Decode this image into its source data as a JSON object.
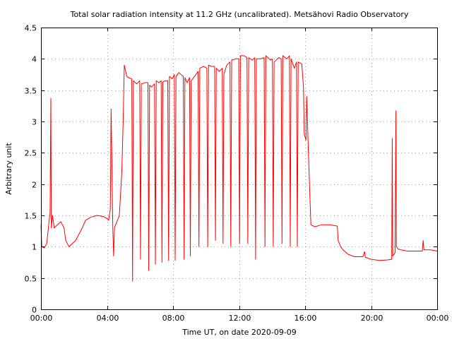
{
  "chart_data": {
    "type": "line",
    "title": "Total solar radiation intensity at 11.2 GHz (uncalibrated). Metsähovi Radio Observatory",
    "xlabel": "Time UT, on date 2020-09-09",
    "ylabel": "Arbitrary unit",
    "xlim": [
      0,
      24
    ],
    "ylim": [
      0,
      4.5
    ],
    "x_ticks": [
      {
        "value": 0,
        "label": "00:00"
      },
      {
        "value": 4,
        "label": "04:00"
      },
      {
        "value": 8,
        "label": "08:00"
      },
      {
        "value": 12,
        "label": "12:00"
      },
      {
        "value": 16,
        "label": "16:00"
      },
      {
        "value": 20,
        "label": "20:00"
      },
      {
        "value": 24,
        "label": "00:00"
      }
    ],
    "y_ticks": [
      {
        "value": 0,
        "label": "0"
      },
      {
        "value": 0.5,
        "label": "0.5"
      },
      {
        "value": 1,
        "label": "1"
      },
      {
        "value": 1.5,
        "label": "1.5"
      },
      {
        "value": 2,
        "label": "2"
      },
      {
        "value": 2.5,
        "label": "2.5"
      },
      {
        "value": 3,
        "label": "3"
      },
      {
        "value": 3.5,
        "label": "3.5"
      },
      {
        "value": 4,
        "label": "4"
      },
      {
        "value": 4.5,
        "label": "4.5"
      }
    ],
    "grid": true,
    "line_color": "#ff0000",
    "series": [
      {
        "points": [
          [
            0.0,
            1.35
          ],
          [
            0.05,
            1.0
          ],
          [
            0.2,
            0.98
          ],
          [
            0.35,
            1.05
          ],
          [
            0.45,
            1.3
          ],
          [
            0.55,
            1.55
          ],
          [
            0.6,
            3.37
          ],
          [
            0.63,
            1.3
          ],
          [
            0.7,
            1.5
          ],
          [
            0.8,
            1.3
          ],
          [
            1.0,
            1.35
          ],
          [
            1.2,
            1.4
          ],
          [
            1.4,
            1.3
          ],
          [
            1.5,
            1.1
          ],
          [
            1.7,
            1.0
          ],
          [
            1.9,
            1.05
          ],
          [
            2.1,
            1.1
          ],
          [
            2.3,
            1.2
          ],
          [
            2.5,
            1.3
          ],
          [
            2.7,
            1.42
          ],
          [
            3.0,
            1.47
          ],
          [
            3.4,
            1.5
          ],
          [
            3.8,
            1.48
          ],
          [
            4.0,
            1.45
          ],
          [
            4.1,
            1.42
          ],
          [
            4.2,
            1.6
          ],
          [
            4.25,
            3.2
          ],
          [
            4.3,
            2.3
          ],
          [
            4.35,
            1.3
          ],
          [
            4.4,
            0.85
          ],
          [
            4.45,
            1.3
          ],
          [
            4.6,
            1.4
          ],
          [
            4.75,
            1.5
          ],
          [
            4.9,
            2.2
          ],
          [
            4.98,
            3.0
          ],
          [
            5.05,
            3.9
          ],
          [
            5.2,
            3.72
          ],
          [
            5.3,
            3.7
          ],
          [
            5.5,
            3.68
          ],
          [
            5.55,
            0.45
          ],
          [
            5.6,
            3.65
          ],
          [
            5.8,
            3.6
          ],
          [
            5.98,
            3.65
          ],
          [
            6.03,
            0.8
          ],
          [
            6.08,
            3.6
          ],
          [
            6.3,
            3.62
          ],
          [
            6.48,
            3.62
          ],
          [
            6.53,
            0.62
          ],
          [
            6.58,
            3.58
          ],
          [
            6.7,
            3.55
          ],
          [
            6.88,
            3.6
          ],
          [
            6.93,
            0.72
          ],
          [
            6.98,
            3.65
          ],
          [
            7.15,
            3.62
          ],
          [
            7.28,
            3.65
          ],
          [
            7.33,
            0.75
          ],
          [
            7.38,
            3.63
          ],
          [
            7.52,
            3.65
          ],
          [
            7.68,
            3.65
          ],
          [
            7.73,
            0.78
          ],
          [
            7.78,
            3.72
          ],
          [
            7.95,
            3.68
          ],
          [
            8.08,
            3.75
          ],
          [
            8.13,
            0.78
          ],
          [
            8.18,
            3.72
          ],
          [
            8.35,
            3.78
          ],
          [
            8.62,
            3.72
          ],
          [
            8.67,
            0.8
          ],
          [
            8.72,
            3.7
          ],
          [
            8.85,
            3.62
          ],
          [
            9.0,
            3.7
          ],
          [
            9.05,
            0.85
          ],
          [
            9.1,
            3.65
          ],
          [
            9.3,
            3.72
          ],
          [
            9.52,
            3.8
          ],
          [
            9.57,
            1.0
          ],
          [
            9.62,
            3.85
          ],
          [
            9.85,
            3.88
          ],
          [
            10.05,
            3.85
          ],
          [
            10.1,
            1.0
          ],
          [
            10.15,
            3.9
          ],
          [
            10.3,
            3.88
          ],
          [
            10.52,
            3.88
          ],
          [
            10.57,
            1.1
          ],
          [
            10.62,
            3.85
          ],
          [
            10.8,
            3.8
          ],
          [
            10.98,
            3.85
          ],
          [
            11.03,
            1.05
          ],
          [
            11.08,
            3.75
          ],
          [
            11.25,
            3.9
          ],
          [
            11.45,
            3.95
          ],
          [
            11.5,
            1.0
          ],
          [
            11.55,
            3.98
          ],
          [
            11.8,
            4.0
          ],
          [
            11.98,
            4.0
          ],
          [
            12.03,
            1.05
          ],
          [
            12.08,
            4.05
          ],
          [
            12.3,
            4.05
          ],
          [
            12.48,
            4.02
          ],
          [
            12.53,
            1.05
          ],
          [
            12.58,
            4.02
          ],
          [
            12.8,
            3.98
          ],
          [
            12.95,
            4.02
          ],
          [
            13.0,
            0.8
          ],
          [
            13.05,
            4.0
          ],
          [
            13.3,
            4.0
          ],
          [
            13.52,
            4.02
          ],
          [
            13.57,
            1.0
          ],
          [
            13.62,
            4.05
          ],
          [
            13.9,
            3.98
          ],
          [
            14.02,
            4.0
          ],
          [
            14.07,
            1.0
          ],
          [
            14.12,
            3.95
          ],
          [
            14.4,
            4.02
          ],
          [
            14.55,
            4.0
          ],
          [
            14.6,
            1.05
          ],
          [
            14.65,
            4.05
          ],
          [
            14.9,
            4.0
          ],
          [
            15.05,
            4.05
          ],
          [
            15.1,
            1.0
          ],
          [
            15.15,
            4.0
          ],
          [
            15.35,
            3.85
          ],
          [
            15.48,
            3.95
          ],
          [
            15.53,
            1.0
          ],
          [
            15.58,
            3.95
          ],
          [
            15.8,
            3.92
          ],
          [
            15.9,
            3.55
          ],
          [
            15.95,
            2.8
          ],
          [
            16.05,
            2.7
          ],
          [
            16.1,
            3.4
          ],
          [
            16.2,
            2.5
          ],
          [
            16.35,
            1.35
          ],
          [
            16.6,
            1.32
          ],
          [
            17.0,
            1.35
          ],
          [
            17.5,
            1.35
          ],
          [
            17.95,
            1.33
          ],
          [
            18.0,
            1.1
          ],
          [
            18.15,
            1.0
          ],
          [
            18.3,
            0.95
          ],
          [
            18.6,
            0.88
          ],
          [
            19.0,
            0.84
          ],
          [
            19.5,
            0.84
          ],
          [
            19.6,
            0.92
          ],
          [
            19.65,
            0.83
          ],
          [
            20.0,
            0.8
          ],
          [
            20.5,
            0.78
          ],
          [
            21.0,
            0.79
          ],
          [
            21.25,
            0.8
          ],
          [
            21.28,
            2.73
          ],
          [
            21.31,
            0.85
          ],
          [
            21.45,
            0.9
          ],
          [
            21.5,
            3.17
          ],
          [
            21.53,
            1.0
          ],
          [
            21.6,
            0.97
          ],
          [
            21.8,
            0.95
          ],
          [
            22.2,
            0.93
          ],
          [
            22.8,
            0.93
          ],
          [
            23.1,
            0.93
          ],
          [
            23.15,
            1.1
          ],
          [
            23.2,
            0.95
          ],
          [
            23.6,
            0.95
          ],
          [
            24.0,
            0.93
          ]
        ]
      }
    ]
  }
}
